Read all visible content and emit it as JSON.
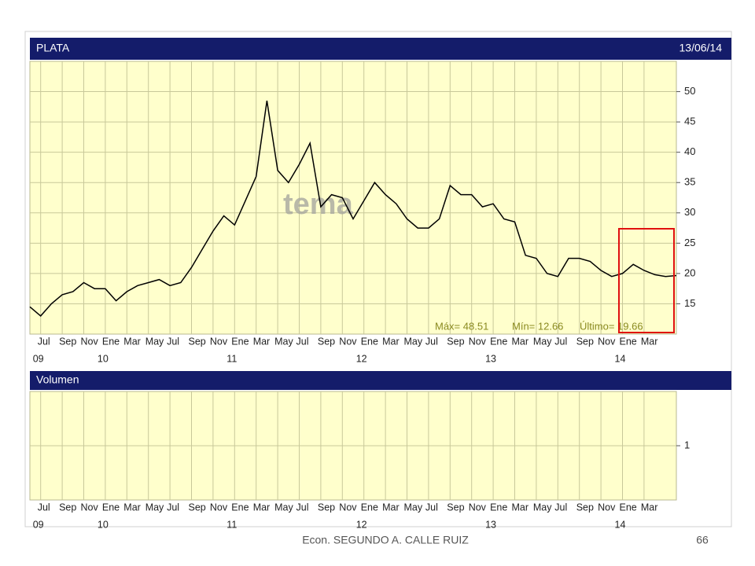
{
  "chart_data": [
    {
      "type": "line",
      "title": "PLATA",
      "date": "13/06/14",
      "x": [
        "2009-06",
        "2009-07",
        "2009-08",
        "2009-09",
        "2009-10",
        "2009-11",
        "2009-12",
        "2010-01",
        "2010-02",
        "2010-03",
        "2010-04",
        "2010-05",
        "2010-06",
        "2010-07",
        "2010-08",
        "2010-09",
        "2010-10",
        "2010-11",
        "2010-12",
        "2011-01",
        "2011-02",
        "2011-03",
        "2011-04",
        "2011-05",
        "2011-06",
        "2011-07",
        "2011-08",
        "2011-09",
        "2011-10",
        "2011-11",
        "2011-12",
        "2012-01",
        "2012-02",
        "2012-03",
        "2012-04",
        "2012-05",
        "2012-06",
        "2012-07",
        "2012-08",
        "2012-09",
        "2012-10",
        "2012-11",
        "2012-12",
        "2013-01",
        "2013-02",
        "2013-03",
        "2013-04",
        "2013-05",
        "2013-06",
        "2013-07",
        "2013-08",
        "2013-09",
        "2013-10",
        "2013-11",
        "2013-12",
        "2014-01",
        "2014-02",
        "2014-03",
        "2014-04",
        "2014-05",
        "2014-06"
      ],
      "values": [
        14.5,
        13,
        15,
        16.5,
        17,
        18.5,
        17.5,
        17.5,
        15.5,
        17,
        18,
        18.5,
        19,
        18,
        18.5,
        21,
        24,
        27,
        29.5,
        28,
        32,
        36,
        48.5,
        37,
        35,
        38,
        41.5,
        31,
        33,
        32.5,
        29,
        32,
        35,
        33,
        31.5,
        29,
        27.5,
        27.5,
        29,
        34.5,
        33,
        33,
        31,
        31.5,
        29,
        28.5,
        23,
        22.5,
        20,
        19.5,
        22.5,
        22.5,
        22,
        20.5,
        19.5,
        20,
        21.5,
        20.5,
        19.8,
        19.5,
        19.66
      ],
      "color": "#000000",
      "xlim": [
        "2009-06",
        "2014-06"
      ],
      "ylim": [
        10,
        55
      ],
      "yticks": [
        15,
        20,
        25,
        30,
        35,
        40,
        45,
        50
      ],
      "grid": true,
      "xticks": [
        {
          "value": "2009-07",
          "label": "Jul"
        },
        {
          "value": "2009-09",
          "label": "Sep"
        },
        {
          "value": "2009-11",
          "label": "Nov"
        },
        {
          "value": "2010-01",
          "label": "Ene"
        },
        {
          "value": "2010-03",
          "label": "Mar"
        },
        {
          "value": "2010-05",
          "label": "May"
        },
        {
          "value": "2010-07",
          "label": "Jul"
        },
        {
          "value": "2010-09",
          "label": "Sep"
        },
        {
          "value": "2010-11",
          "label": "Nov"
        },
        {
          "value": "2011-01",
          "label": "Ene"
        },
        {
          "value": "2011-03",
          "label": "Mar"
        },
        {
          "value": "2011-05",
          "label": "May"
        },
        {
          "value": "2011-07",
          "label": "Jul"
        },
        {
          "value": "2011-09",
          "label": "Sep"
        },
        {
          "value": "2011-11",
          "label": "Nov"
        },
        {
          "value": "2012-01",
          "label": "Ene"
        },
        {
          "value": "2012-03",
          "label": "Mar"
        },
        {
          "value": "2012-05",
          "label": "May"
        },
        {
          "value": "2012-07",
          "label": "Jul"
        },
        {
          "value": "2012-09",
          "label": "Sep"
        },
        {
          "value": "2012-11",
          "label": "Nov"
        },
        {
          "value": "2013-01",
          "label": "Ene"
        },
        {
          "value": "2013-03",
          "label": "Mar"
        },
        {
          "value": "2013-05",
          "label": "May"
        },
        {
          "value": "2013-07",
          "label": "Jul"
        },
        {
          "value": "2013-09",
          "label": "Sep"
        },
        {
          "value": "2013-11",
          "label": "Nov"
        },
        {
          "value": "2014-01",
          "label": "Ene"
        },
        {
          "value": "2014-03",
          "label": "Mar"
        }
      ],
      "xyears": [
        {
          "value": "2009-07",
          "label": "09"
        },
        {
          "value": "2010-01",
          "label": "10"
        },
        {
          "value": "2011-01",
          "label": "11"
        },
        {
          "value": "2012-01",
          "label": "12"
        },
        {
          "value": "2013-01",
          "label": "13"
        },
        {
          "value": "2014-01",
          "label": "14"
        }
      ],
      "annotations": [
        "Máx= 48.51",
        "Mín= 12.66",
        "Último= 19.66"
      ],
      "watermark": "tema"
    },
    {
      "type": "bar",
      "title": "Volumen",
      "xlim": [
        "2009-06",
        "2014-06"
      ],
      "ylim": [
        0,
        2
      ],
      "yticks": [
        1
      ],
      "grid": true,
      "xticks": [
        {
          "value": "2009-07",
          "label": "Jul"
        },
        {
          "value": "2009-09",
          "label": "Sep"
        },
        {
          "value": "2009-11",
          "label": "Nov"
        },
        {
          "value": "2010-01",
          "label": "Ene"
        },
        {
          "value": "2010-03",
          "label": "Mar"
        },
        {
          "value": "2010-05",
          "label": "May"
        },
        {
          "value": "2010-07",
          "label": "Jul"
        },
        {
          "value": "2010-09",
          "label": "Sep"
        },
        {
          "value": "2010-11",
          "label": "Nov"
        },
        {
          "value": "2011-01",
          "label": "Ene"
        },
        {
          "value": "2011-03",
          "label": "Mar"
        },
        {
          "value": "2011-05",
          "label": "May"
        },
        {
          "value": "2011-07",
          "label": "Jul"
        },
        {
          "value": "2011-09",
          "label": "Sep"
        },
        {
          "value": "2011-11",
          "label": "Nov"
        },
        {
          "value": "2012-01",
          "label": "Ene"
        },
        {
          "value": "2012-03",
          "label": "Mar"
        },
        {
          "value": "2012-05",
          "label": "May"
        },
        {
          "value": "2012-07",
          "label": "Jul"
        },
        {
          "value": "2012-09",
          "label": "Sep"
        },
        {
          "value": "2012-11",
          "label": "Nov"
        },
        {
          "value": "2013-01",
          "label": "Ene"
        },
        {
          "value": "2013-03",
          "label": "Mar"
        },
        {
          "value": "2013-05",
          "label": "May"
        },
        {
          "value": "2013-07",
          "label": "Jul"
        },
        {
          "value": "2013-09",
          "label": "Sep"
        },
        {
          "value": "2013-11",
          "label": "Nov"
        },
        {
          "value": "2014-01",
          "label": "Ene"
        },
        {
          "value": "2014-03",
          "label": "Mar"
        }
      ],
      "xyears": [
        {
          "value": "2009-07",
          "label": "09"
        },
        {
          "value": "2010-01",
          "label": "10"
        },
        {
          "value": "2011-01",
          "label": "11"
        },
        {
          "value": "2012-01",
          "label": "12"
        },
        {
          "value": "2013-01",
          "label": "13"
        },
        {
          "value": "2014-01",
          "label": "14"
        }
      ]
    }
  ],
  "footer": {
    "author": "Econ. SEGUNDO A. CALLE RUIZ",
    "page": "66"
  }
}
